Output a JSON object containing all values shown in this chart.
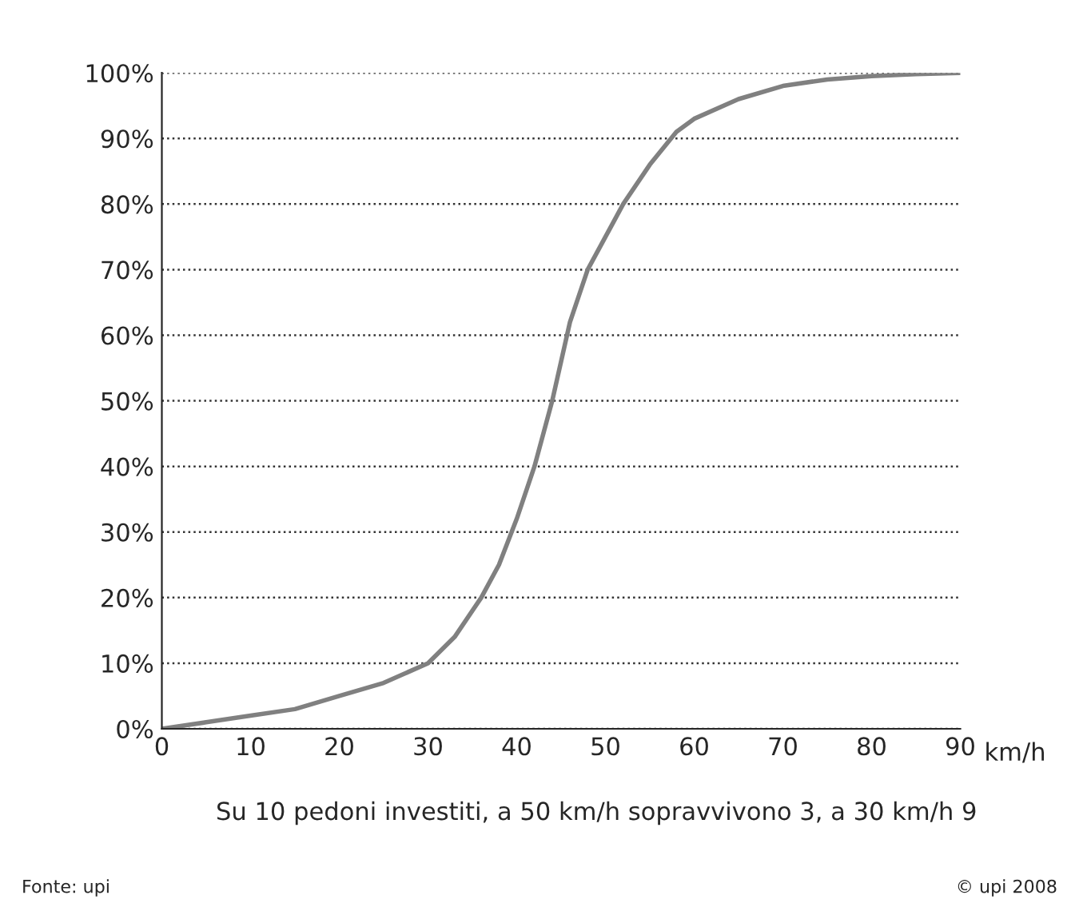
{
  "chart_data": {
    "type": "line",
    "xlabel": "km/h",
    "x": [
      0,
      5,
      10,
      15,
      20,
      25,
      30,
      33,
      36,
      38,
      40,
      42,
      44,
      46,
      48,
      50,
      52,
      55,
      58,
      60,
      65,
      70,
      75,
      80,
      85,
      90
    ],
    "series": [
      {
        "color": "#808080",
        "values": [
          0,
          1,
          2,
          3,
          5,
          7,
          10,
          14,
          20,
          25,
          32,
          40,
          50,
          62,
          70,
          75,
          80,
          86,
          91,
          93,
          96,
          98,
          99,
          99.5,
          99.8,
          100
        ]
      }
    ],
    "xlim": [
      0,
      90
    ],
    "xticks": [
      0,
      10,
      20,
      30,
      40,
      50,
      60,
      70,
      80,
      90
    ],
    "ylim": [
      0,
      100
    ],
    "yticks": [
      {
        "value": 0,
        "label": "0%"
      },
      {
        "value": 10,
        "label": "10%"
      },
      {
        "value": 20,
        "label": "20%"
      },
      {
        "value": 30,
        "label": "30%"
      },
      {
        "value": 40,
        "label": "40%"
      },
      {
        "value": 50,
        "label": "50%"
      },
      {
        "value": 60,
        "label": "60%"
      },
      {
        "value": 70,
        "label": "70%"
      },
      {
        "value": 80,
        "label": "80%"
      },
      {
        "value": 90,
        "label": "90%"
      },
      {
        "value": 100,
        "label": "100%"
      }
    ],
    "grid": "y",
    "marker": "none",
    "line_style": "solid",
    "annotations": [
      "Su 10 pedoni investiti, a 50 km/h sopravvivono 3, a 30 km/h 9",
      "Fonte: upi",
      "© upi 2008"
    ]
  }
}
